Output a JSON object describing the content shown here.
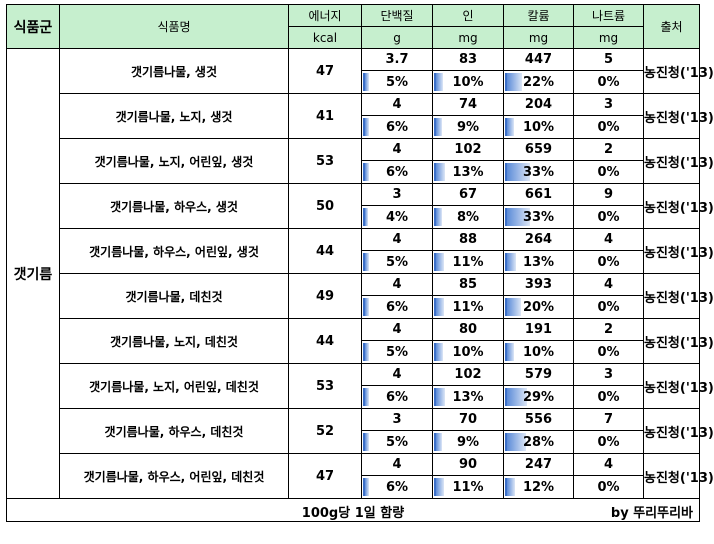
{
  "header": {
    "group": "식품군",
    "name": "식품명",
    "energy": "에너지",
    "protein": "단백질",
    "phosphorus": "인",
    "potassium": "칼륨",
    "sodium": "나트륨",
    "source": "출처",
    "energy_unit": "kcal",
    "protein_unit": "g",
    "phosphorus_unit": "mg",
    "potassium_unit": "mg",
    "sodium_unit": "mg"
  },
  "group_label": "갯기름",
  "rows": [
    {
      "name": "갯기름나물, 생것",
      "energy": "47",
      "protein": "3.7",
      "protein_pct": "5%",
      "protein_frac": 0.05,
      "phosphorus": "83",
      "phosphorus_pct": "10%",
      "phosphorus_frac": 0.1,
      "potassium": "447",
      "potassium_pct": "22%",
      "potassium_frac": 0.22,
      "sodium": "5",
      "sodium_pct": "0%",
      "sodium_frac": 0.0,
      "source": "농진청('13)"
    },
    {
      "name": "갯기름나물, 노지, 생것",
      "energy": "41",
      "protein": "4",
      "protein_pct": "6%",
      "protein_frac": 0.06,
      "phosphorus": "74",
      "phosphorus_pct": "9%",
      "phosphorus_frac": 0.09,
      "potassium": "204",
      "potassium_pct": "10%",
      "potassium_frac": 0.1,
      "sodium": "3",
      "sodium_pct": "0%",
      "sodium_frac": 0.0,
      "source": "농진청('13)"
    },
    {
      "name": "갯기름나물, 노지, 어린잎, 생것",
      "energy": "53",
      "protein": "4",
      "protein_pct": "6%",
      "protein_frac": 0.06,
      "phosphorus": "102",
      "phosphorus_pct": "13%",
      "phosphorus_frac": 0.13,
      "potassium": "659",
      "potassium_pct": "33%",
      "potassium_frac": 0.33,
      "sodium": "2",
      "sodium_pct": "0%",
      "sodium_frac": 0.0,
      "source": "농진청('13)"
    },
    {
      "name": "갯기름나물, 하우스, 생것",
      "energy": "50",
      "protein": "3",
      "protein_pct": "4%",
      "protein_frac": 0.04,
      "phosphorus": "67",
      "phosphorus_pct": "8%",
      "phosphorus_frac": 0.08,
      "potassium": "661",
      "potassium_pct": "33%",
      "potassium_frac": 0.33,
      "sodium": "9",
      "sodium_pct": "0%",
      "sodium_frac": 0.0,
      "source": "농진청('13)"
    },
    {
      "name": "갯기름나물, 하우스, 어린잎, 생것",
      "energy": "44",
      "protein": "4",
      "protein_pct": "5%",
      "protein_frac": 0.05,
      "phosphorus": "88",
      "phosphorus_pct": "11%",
      "phosphorus_frac": 0.11,
      "potassium": "264",
      "potassium_pct": "13%",
      "potassium_frac": 0.13,
      "sodium": "4",
      "sodium_pct": "0%",
      "sodium_frac": 0.0,
      "source": "농진청('13)"
    },
    {
      "name": "갯기름나물, 데친것",
      "energy": "49",
      "protein": "4",
      "protein_pct": "6%",
      "protein_frac": 0.06,
      "phosphorus": "85",
      "phosphorus_pct": "11%",
      "phosphorus_frac": 0.11,
      "potassium": "393",
      "potassium_pct": "20%",
      "potassium_frac": 0.2,
      "sodium": "4",
      "sodium_pct": "0%",
      "sodium_frac": 0.0,
      "source": "농진청('13)"
    },
    {
      "name": "갯기름나물, 노지, 데친것",
      "energy": "44",
      "protein": "4",
      "protein_pct": "5%",
      "protein_frac": 0.05,
      "phosphorus": "80",
      "phosphorus_pct": "10%",
      "phosphorus_frac": 0.1,
      "potassium": "191",
      "potassium_pct": "10%",
      "potassium_frac": 0.1,
      "sodium": "2",
      "sodium_pct": "0%",
      "sodium_frac": 0.0,
      "source": "농진청('13)"
    },
    {
      "name": "갯기름나물, 노지, 어린잎, 데친것",
      "energy": "53",
      "protein": "4",
      "protein_pct": "6%",
      "protein_frac": 0.06,
      "phosphorus": "102",
      "phosphorus_pct": "13%",
      "phosphorus_frac": 0.13,
      "potassium": "579",
      "potassium_pct": "29%",
      "potassium_frac": 0.29,
      "sodium": "3",
      "sodium_pct": "0%",
      "sodium_frac": 0.0,
      "source": "농진청('13)"
    },
    {
      "name": "갯기름나물, 하우스, 데친것",
      "energy": "52",
      "protein": "3",
      "protein_pct": "5%",
      "protein_frac": 0.05,
      "phosphorus": "70",
      "phosphorus_pct": "9%",
      "phosphorus_frac": 0.09,
      "potassium": "556",
      "potassium_pct": "28%",
      "potassium_frac": 0.28,
      "sodium": "7",
      "sodium_pct": "0%",
      "sodium_frac": 0.0,
      "source": "농진청('13)"
    },
    {
      "name": "갯기름나물, 하우스, 어린잎, 데친것",
      "energy": "47",
      "protein": "4",
      "protein_pct": "6%",
      "protein_frac": 0.06,
      "phosphorus": "90",
      "phosphorus_pct": "11%",
      "phosphorus_frac": 0.11,
      "potassium": "247",
      "potassium_pct": "12%",
      "potassium_frac": 0.12,
      "sodium": "4",
      "sodium_pct": "0%",
      "sodium_frac": 0.0,
      "source": "농진청('13)"
    }
  ],
  "footer": {
    "title": "100g당 1일 함량",
    "byline": "by 뚜리뚜리바"
  },
  "colors": {
    "header_bg": "#c6efce",
    "bar_start": "#5b8bd8",
    "bar_end": "#dce6f6"
  }
}
